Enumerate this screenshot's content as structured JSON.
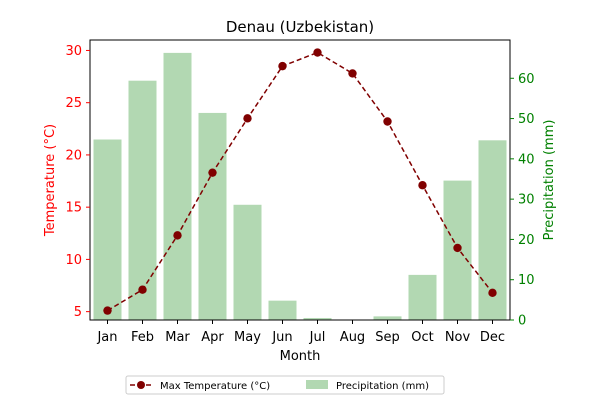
{
  "chart_data": {
    "type": "bar+line",
    "title": "Denau (Uzbekistan)",
    "xlabel": "Month",
    "categories": [
      "Jan",
      "Feb",
      "Mar",
      "Apr",
      "May",
      "Jun",
      "Jul",
      "Aug",
      "Sep",
      "Oct",
      "Nov",
      "Dec"
    ],
    "left_axis": {
      "label": "Temperature (°C)",
      "color": "#ff0000",
      "ylim": [
        4.2,
        31.0
      ],
      "ticks": [
        5,
        10,
        15,
        20,
        25,
        30
      ]
    },
    "right_axis": {
      "label": "Precipitation (mm)",
      "color": "#008000",
      "ylim": [
        0,
        69.5
      ],
      "ticks": [
        0,
        10,
        20,
        30,
        40,
        50,
        60
      ]
    },
    "series": [
      {
        "name": "Max Temperature (°C)",
        "type": "line",
        "axis": "left",
        "color": "#800000",
        "style": "dashed-with-circle-markers",
        "values": [
          5.1,
          7.1,
          12.3,
          18.3,
          23.5,
          28.5,
          29.8,
          27.8,
          23.2,
          17.1,
          11.1,
          6.8
        ]
      },
      {
        "name": "Precipitation (mm)",
        "type": "bar",
        "axis": "right",
        "color": "#b2d8b2",
        "values": [
          44.8,
          59.4,
          66.3,
          51.4,
          28.6,
          4.8,
          0.5,
          0.1,
          0.9,
          11.2,
          34.6,
          44.6
        ]
      }
    ],
    "legend_placement": "bottom-center"
  }
}
